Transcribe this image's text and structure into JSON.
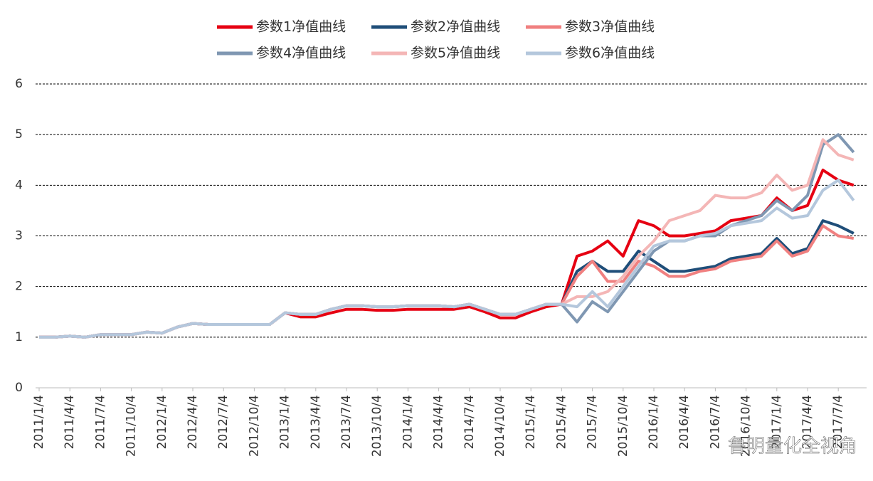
{
  "chart_data": {
    "type": "line",
    "categories": [
      "2011/1/4",
      null,
      "2011/4/4",
      null,
      "2011/7/4",
      null,
      "2011/10/4",
      null,
      "2012/1/4",
      null,
      "2012/4/4",
      null,
      "2012/7/4",
      null,
      "2012/10/4",
      null,
      "2013/1/4",
      null,
      "2013/4/4",
      null,
      "2013/7/4",
      null,
      "2013/10/4",
      null,
      "2014/1/4",
      null,
      "2014/4/4",
      null,
      "2014/7/4",
      null,
      "2014/10/4",
      null,
      "2015/1/4",
      null,
      "2015/4/4",
      null,
      "2015/7/4",
      null,
      "2015/10/4",
      null,
      "2016/1/4",
      null,
      "2016/4/4",
      null,
      "2016/7/4",
      null,
      "2016/10/4",
      null,
      "2017/1/4",
      null,
      "2017/4/4",
      null,
      "2017/7/4",
      null
    ],
    "series": [
      {
        "name": "参数1净值曲线",
        "color": "#e60012",
        "values": [
          1.0,
          1.0,
          1.02,
          1.0,
          1.05,
          1.05,
          1.05,
          1.1,
          1.08,
          1.2,
          1.27,
          1.25,
          1.25,
          1.25,
          1.25,
          1.25,
          1.48,
          1.4,
          1.4,
          1.48,
          1.55,
          1.55,
          1.53,
          1.53,
          1.55,
          1.55,
          1.55,
          1.55,
          1.6,
          1.5,
          1.38,
          1.38,
          1.5,
          1.6,
          1.65,
          2.6,
          2.7,
          2.9,
          2.6,
          3.3,
          3.2,
          3.0,
          3.0,
          3.05,
          3.1,
          3.3,
          3.35,
          3.4,
          3.75,
          3.5,
          3.6,
          4.3,
          4.1,
          4.0
        ]
      },
      {
        "name": "参数2净值曲线",
        "color": "#1f4e79",
        "values": [
          1.0,
          1.0,
          1.02,
          1.0,
          1.05,
          1.05,
          1.05,
          1.1,
          1.08,
          1.2,
          1.27,
          1.25,
          1.25,
          1.25,
          1.25,
          1.25,
          1.48,
          1.45,
          1.45,
          1.55,
          1.62,
          1.62,
          1.6,
          1.6,
          1.62,
          1.62,
          1.62,
          1.6,
          1.65,
          1.55,
          1.45,
          1.45,
          1.55,
          1.65,
          1.65,
          2.3,
          2.5,
          2.3,
          2.3,
          2.7,
          2.5,
          2.3,
          2.3,
          2.35,
          2.4,
          2.55,
          2.6,
          2.65,
          2.95,
          2.65,
          2.75,
          3.3,
          3.2,
          3.05
        ]
      },
      {
        "name": "参数3净值曲线",
        "color": "#f08080",
        "values": [
          1.0,
          1.0,
          1.02,
          1.0,
          1.05,
          1.05,
          1.05,
          1.1,
          1.08,
          1.2,
          1.27,
          1.25,
          1.25,
          1.25,
          1.25,
          1.25,
          1.48,
          1.45,
          1.45,
          1.55,
          1.62,
          1.62,
          1.6,
          1.6,
          1.62,
          1.62,
          1.62,
          1.6,
          1.65,
          1.55,
          1.45,
          1.45,
          1.55,
          1.65,
          1.65,
          2.2,
          2.5,
          2.1,
          2.1,
          2.5,
          2.4,
          2.2,
          2.2,
          2.3,
          2.35,
          2.5,
          2.55,
          2.6,
          2.9,
          2.6,
          2.7,
          3.2,
          3.0,
          2.95
        ]
      },
      {
        "name": "参数4净值曲线",
        "color": "#7f97b2",
        "values": [
          1.0,
          1.0,
          1.02,
          1.0,
          1.05,
          1.05,
          1.05,
          1.1,
          1.08,
          1.2,
          1.27,
          1.25,
          1.25,
          1.25,
          1.25,
          1.25,
          1.48,
          1.45,
          1.45,
          1.55,
          1.62,
          1.62,
          1.6,
          1.6,
          1.62,
          1.62,
          1.62,
          1.6,
          1.65,
          1.55,
          1.45,
          1.45,
          1.55,
          1.65,
          1.65,
          1.3,
          1.7,
          1.5,
          1.9,
          2.3,
          2.7,
          2.9,
          2.9,
          3.0,
          3.0,
          3.2,
          3.3,
          3.4,
          3.7,
          3.5,
          3.8,
          4.8,
          5.0,
          4.65
        ]
      },
      {
        "name": "参数5净值曲线",
        "color": "#f4b6b6",
        "values": [
          1.0,
          1.0,
          1.02,
          1.0,
          1.05,
          1.05,
          1.05,
          1.1,
          1.08,
          1.2,
          1.27,
          1.25,
          1.25,
          1.25,
          1.25,
          1.25,
          1.48,
          1.45,
          1.45,
          1.55,
          1.62,
          1.62,
          1.6,
          1.6,
          1.62,
          1.62,
          1.62,
          1.6,
          1.65,
          1.55,
          1.45,
          1.45,
          1.55,
          1.65,
          1.65,
          1.8,
          1.8,
          1.9,
          2.2,
          2.6,
          2.9,
          3.3,
          3.4,
          3.5,
          3.8,
          3.75,
          3.75,
          3.85,
          4.2,
          3.9,
          4.0,
          4.9,
          4.6,
          4.5
        ]
      },
      {
        "name": "参数6净值曲线",
        "color": "#b4c7dc",
        "values": [
          1.0,
          1.0,
          1.02,
          1.0,
          1.05,
          1.05,
          1.05,
          1.1,
          1.08,
          1.2,
          1.27,
          1.25,
          1.25,
          1.25,
          1.25,
          1.25,
          1.48,
          1.45,
          1.45,
          1.55,
          1.62,
          1.62,
          1.6,
          1.6,
          1.62,
          1.62,
          1.62,
          1.6,
          1.65,
          1.55,
          1.45,
          1.45,
          1.55,
          1.65,
          1.65,
          1.6,
          1.9,
          1.6,
          2.0,
          2.4,
          2.8,
          2.9,
          2.9,
          3.0,
          3.05,
          3.2,
          3.25,
          3.3,
          3.55,
          3.35,
          3.4,
          3.9,
          4.1,
          3.7
        ]
      }
    ],
    "ylim": [
      0,
      6
    ],
    "yticks": [
      0,
      1,
      2,
      3,
      4,
      5,
      6
    ],
    "grid": true,
    "watermark": "鲁明量化全视角"
  }
}
